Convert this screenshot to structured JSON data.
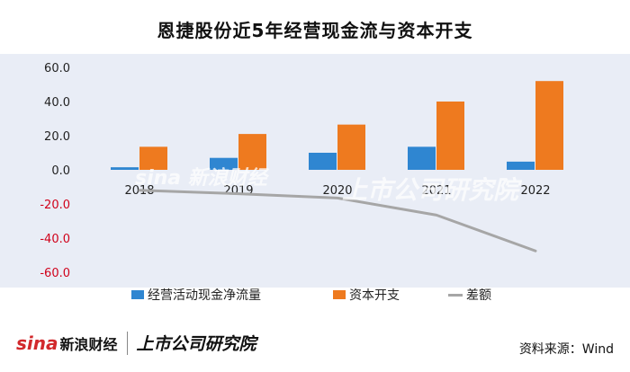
{
  "title": "恩捷股份近5年经营现金流与资本开支",
  "chart_data": {
    "type": "bar",
    "categories": [
      "2018",
      "2019",
      "2020",
      "2021",
      "2022"
    ],
    "series": [
      {
        "name": "经营活动现金净流量",
        "type": "bar",
        "color": "#2f86d1",
        "values": [
          1.5,
          7.0,
          10.0,
          13.5,
          4.8
        ]
      },
      {
        "name": "资本开支",
        "type": "bar",
        "color": "#ee7a1f",
        "values": [
          13.5,
          21.0,
          26.5,
          40.0,
          52.0
        ]
      },
      {
        "name": "差额",
        "type": "line",
        "color": "#a6a6a6",
        "values": [
          -12.0,
          -14.0,
          -16.5,
          -26.5,
          -47.5
        ]
      }
    ],
    "yticks": [
      "60.0",
      "40.0",
      "20.0",
      "0.0",
      "-20.0",
      "-40.0",
      "-60.0"
    ],
    "ylim": [
      -60,
      60
    ],
    "negative_tick_color": "#d0021b",
    "legend_position": "bottom",
    "grid": false
  },
  "legend": {
    "items": [
      "经营活动现金净流量",
      "资本开支",
      "差额"
    ]
  },
  "footer": {
    "sina_logo": "sina",
    "sina_cn": "新浪财经",
    "institute": "上市公司研究院",
    "source": "资料来源：Wind"
  }
}
